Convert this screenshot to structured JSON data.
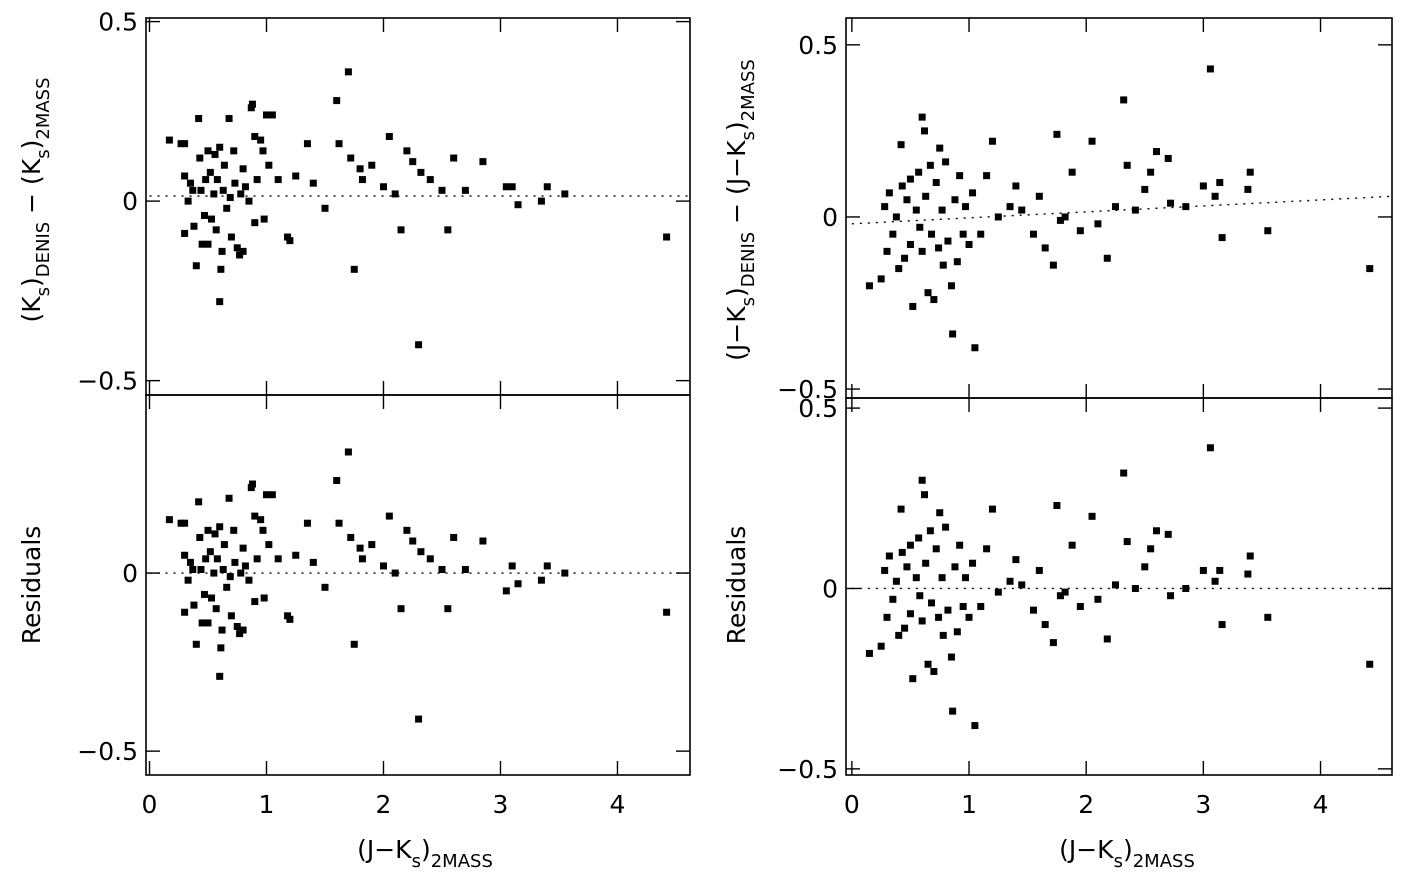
{
  "chart_data": [
    {
      "type": "scatter",
      "xlim": [
        -0.03,
        4.62
      ],
      "ylim": [
        -0.54,
        0.51
      ],
      "yticks": [
        {
          "value": -0.5,
          "label": "−0.5"
        },
        0,
        0.5
      ],
      "ylabel": [
        "(K",
        "s",
        ")",
        "DENIS",
        " − (K",
        "s",
        ")",
        "2MASS"
      ],
      "color": "#000000",
      "fit": {
        "x": [
          0,
          4.62
        ],
        "y": [
          0.014,
          0.014
        ]
      },
      "x": [
        0.17,
        0.27,
        0.3,
        0.3,
        0.3,
        0.33,
        0.35,
        0.37,
        0.38,
        0.4,
        0.42,
        0.43,
        0.44,
        0.45,
        0.47,
        0.48,
        0.5,
        0.5,
        0.52,
        0.53,
        0.55,
        0.56,
        0.57,
        0.58,
        0.6,
        0.6,
        0.61,
        0.62,
        0.63,
        0.64,
        0.66,
        0.68,
        0.69,
        0.7,
        0.72,
        0.73,
        0.75,
        0.77,
        0.78,
        0.8,
        0.8,
        0.82,
        0.85,
        0.87,
        0.88,
        0.9,
        0.9,
        0.92,
        0.95,
        0.97,
        0.98,
        1.0,
        1.02,
        1.05,
        1.1,
        1.18,
        1.2,
        1.25,
        1.35,
        1.4,
        1.5,
        1.6,
        1.62,
        1.7,
        1.72,
        1.75,
        1.8,
        1.82,
        1.9,
        2.0,
        2.05,
        2.1,
        2.15,
        2.2,
        2.25,
        2.3,
        2.32,
        2.4,
        2.5,
        2.55,
        2.6,
        2.7,
        2.85,
        3.05,
        3.1,
        3.15,
        3.35,
        3.4,
        3.55,
        4.42
      ],
      "y": [
        0.17,
        0.16,
        0.16,
        0.07,
        -0.09,
        0.0,
        0.05,
        0.03,
        -0.07,
        -0.18,
        0.23,
        0.12,
        0.03,
        -0.12,
        -0.04,
        0.06,
        0.14,
        -0.12,
        0.08,
        -0.05,
        0.02,
        0.13,
        -0.08,
        0.06,
        0.15,
        -0.28,
        -0.19,
        -0.14,
        0.03,
        0.1,
        -0.02,
        0.23,
        0.01,
        -0.1,
        0.14,
        0.05,
        -0.13,
        -0.15,
        0.02,
        0.09,
        -0.14,
        0.04,
        0.0,
        0.26,
        0.27,
        0.18,
        -0.06,
        0.06,
        0.17,
        0.14,
        -0.05,
        0.24,
        0.1,
        0.24,
        0.06,
        -0.1,
        -0.11,
        0.07,
        0.16,
        0.05,
        -0.02,
        0.28,
        0.16,
        0.36,
        0.12,
        -0.19,
        0.09,
        0.06,
        0.1,
        0.04,
        0.18,
        0.02,
        -0.08,
        0.14,
        0.11,
        -0.4,
        0.08,
        0.06,
        0.03,
        -0.08,
        0.12,
        0.03,
        0.11,
        0.04,
        0.04,
        -0.01,
        0.0,
        0.04,
        0.02,
        -0.1
      ]
    },
    {
      "type": "scatter",
      "xlim": [
        -0.03,
        4.62
      ],
      "ylim": [
        -0.567,
        0.5
      ],
      "xticks": [
        0,
        1,
        2,
        3,
        4
      ],
      "yticks": [
        {
          "value": -0.5,
          "label": "−0.5"
        },
        0
      ],
      "ylabel": [
        "Residuals"
      ],
      "xlabel": [
        "(J−K",
        "s",
        ")",
        "2MASS"
      ],
      "color": "#000000",
      "fit": {
        "x": [
          0,
          4.62
        ],
        "y": [
          0,
          0
        ]
      },
      "x": [
        0.17,
        0.27,
        0.3,
        0.3,
        0.3,
        0.33,
        0.35,
        0.37,
        0.38,
        0.4,
        0.42,
        0.43,
        0.44,
        0.45,
        0.47,
        0.48,
        0.5,
        0.5,
        0.52,
        0.53,
        0.55,
        0.56,
        0.57,
        0.58,
        0.6,
        0.6,
        0.61,
        0.62,
        0.63,
        0.64,
        0.66,
        0.68,
        0.69,
        0.7,
        0.72,
        0.73,
        0.75,
        0.77,
        0.78,
        0.8,
        0.8,
        0.82,
        0.85,
        0.87,
        0.88,
        0.9,
        0.9,
        0.92,
        0.95,
        0.97,
        0.98,
        1.0,
        1.02,
        1.05,
        1.1,
        1.18,
        1.2,
        1.25,
        1.35,
        1.4,
        1.5,
        1.6,
        1.62,
        1.7,
        1.72,
        1.75,
        1.8,
        1.82,
        1.9,
        2.0,
        2.05,
        2.1,
        2.15,
        2.2,
        2.25,
        2.3,
        2.32,
        2.4,
        2.5,
        2.55,
        2.6,
        2.7,
        2.85,
        3.05,
        3.1,
        3.15,
        3.35,
        3.4,
        3.55,
        4.42
      ],
      "y": [
        0.15,
        0.14,
        0.14,
        0.05,
        -0.11,
        -0.02,
        0.03,
        0.01,
        -0.09,
        -0.2,
        0.2,
        0.1,
        0.01,
        -0.14,
        -0.06,
        0.04,
        0.12,
        -0.14,
        0.06,
        -0.07,
        0.0,
        0.11,
        -0.1,
        0.04,
        0.13,
        -0.29,
        -0.21,
        -0.16,
        0.01,
        0.08,
        -0.04,
        0.21,
        -0.01,
        -0.12,
        0.12,
        0.03,
        -0.15,
        -0.17,
        0.0,
        0.07,
        -0.16,
        0.02,
        -0.02,
        0.24,
        0.25,
        0.16,
        -0.08,
        0.04,
        0.15,
        0.12,
        -0.07,
        0.22,
        0.08,
        0.22,
        0.04,
        -0.12,
        -0.13,
        0.05,
        0.14,
        0.03,
        -0.04,
        0.26,
        0.14,
        0.34,
        0.1,
        -0.2,
        0.07,
        0.04,
        0.08,
        0.02,
        0.16,
        0.0,
        -0.1,
        0.12,
        0.09,
        -0.41,
        0.06,
        0.04,
        0.01,
        -0.1,
        0.1,
        0.01,
        0.09,
        -0.05,
        0.02,
        -0.03,
        -0.02,
        0.02,
        0.0,
        -0.11
      ]
    },
    {
      "type": "scatter",
      "xlim": [
        -0.05,
        4.61
      ],
      "ylim": [
        -0.526,
        0.578
      ],
      "yticks": [
        {
          "value": -0.5,
          "label": "−0.5"
        },
        0,
        0.5
      ],
      "ylabel": [
        "(J−K",
        "s",
        ")",
        "DENIS",
        " − (J−K",
        "s",
        ")",
        "2MASS"
      ],
      "color": "#000000",
      "fit": {
        "x": [
          0,
          4.61
        ],
        "y": [
          -0.02,
          0.06
        ]
      },
      "x": [
        0.15,
        0.25,
        0.28,
        0.3,
        0.32,
        0.35,
        0.38,
        0.4,
        0.42,
        0.43,
        0.45,
        0.47,
        0.5,
        0.5,
        0.52,
        0.55,
        0.57,
        0.58,
        0.6,
        0.6,
        0.62,
        0.63,
        0.65,
        0.67,
        0.68,
        0.7,
        0.72,
        0.74,
        0.75,
        0.77,
        0.78,
        0.8,
        0.82,
        0.85,
        0.86,
        0.88,
        0.9,
        0.92,
        0.95,
        0.97,
        1.0,
        1.03,
        1.05,
        1.1,
        1.15,
        1.2,
        1.25,
        1.35,
        1.4,
        1.45,
        1.55,
        1.6,
        1.65,
        1.72,
        1.75,
        1.78,
        1.82,
        1.88,
        1.95,
        2.05,
        2.1,
        2.18,
        2.25,
        2.32,
        2.35,
        2.42,
        2.5,
        2.55,
        2.6,
        2.7,
        2.72,
        2.85,
        3.0,
        3.06,
        3.1,
        3.14,
        3.16,
        3.38,
        3.4,
        3.55,
        4.42
      ],
      "y": [
        -0.2,
        -0.18,
        0.03,
        -0.1,
        0.07,
        -0.05,
        0.0,
        -0.15,
        0.21,
        0.09,
        -0.12,
        0.05,
        -0.08,
        0.11,
        -0.26,
        0.02,
        0.13,
        -0.03,
        0.29,
        -0.1,
        0.25,
        0.06,
        -0.22,
        0.15,
        -0.05,
        -0.24,
        0.1,
        -0.09,
        0.2,
        0.02,
        -0.14,
        0.16,
        -0.07,
        -0.2,
        -0.34,
        0.05,
        -0.13,
        0.12,
        -0.05,
        0.03,
        -0.08,
        0.07,
        -0.38,
        -0.05,
        0.12,
        0.22,
        0.0,
        0.03,
        0.09,
        0.02,
        -0.05,
        0.06,
        -0.09,
        -0.14,
        0.24,
        -0.01,
        0.0,
        0.13,
        -0.04,
        0.22,
        -0.02,
        -0.12,
        0.03,
        0.34,
        0.15,
        0.02,
        0.08,
        0.13,
        0.19,
        0.17,
        0.04,
        0.03,
        0.09,
        0.43,
        0.06,
        0.1,
        -0.06,
        0.08,
        0.13,
        -0.04,
        -0.15
      ]
    },
    {
      "type": "scatter",
      "xlim": [
        -0.05,
        4.61
      ],
      "ylim": [
        -0.517,
        0.528
      ],
      "xticks": [
        0,
        1,
        2,
        3,
        4
      ],
      "yticks": [
        {
          "value": -0.5,
          "label": "−0.5"
        },
        0,
        0.5
      ],
      "ylabel": [
        "Residuals"
      ],
      "xlabel": [
        "(J−K",
        "s",
        ")",
        "2MASS"
      ],
      "color": "#000000",
      "fit": {
        "x": [
          0,
          4.61
        ],
        "y": [
          0,
          0
        ]
      },
      "x": [
        0.15,
        0.25,
        0.28,
        0.3,
        0.32,
        0.35,
        0.38,
        0.4,
        0.42,
        0.43,
        0.45,
        0.47,
        0.5,
        0.5,
        0.52,
        0.55,
        0.57,
        0.58,
        0.6,
        0.6,
        0.62,
        0.63,
        0.65,
        0.67,
        0.68,
        0.7,
        0.72,
        0.74,
        0.75,
        0.77,
        0.78,
        0.8,
        0.82,
        0.85,
        0.86,
        0.88,
        0.9,
        0.92,
        0.95,
        0.97,
        1.0,
        1.03,
        1.05,
        1.1,
        1.15,
        1.2,
        1.25,
        1.35,
        1.4,
        1.45,
        1.55,
        1.6,
        1.65,
        1.72,
        1.75,
        1.78,
        1.82,
        1.88,
        1.95,
        2.05,
        2.1,
        2.18,
        2.25,
        2.32,
        2.35,
        2.42,
        2.5,
        2.55,
        2.6,
        2.7,
        2.72,
        2.85,
        3.0,
        3.06,
        3.1,
        3.14,
        3.16,
        3.38,
        3.4,
        3.55,
        4.42
      ],
      "y": [
        -0.18,
        -0.16,
        0.05,
        -0.08,
        0.09,
        -0.03,
        0.02,
        -0.13,
        0.22,
        0.1,
        -0.11,
        0.06,
        -0.07,
        0.12,
        -0.25,
        0.03,
        0.14,
        -0.02,
        0.3,
        -0.09,
        0.26,
        0.07,
        -0.21,
        0.16,
        -0.04,
        -0.23,
        0.11,
        -0.08,
        0.21,
        0.03,
        -0.13,
        0.17,
        -0.06,
        -0.19,
        -0.34,
        0.06,
        -0.12,
        0.12,
        -0.05,
        0.03,
        -0.08,
        0.07,
        -0.38,
        -0.05,
        0.11,
        0.22,
        -0.01,
        0.02,
        0.08,
        0.01,
        -0.06,
        0.05,
        -0.1,
        -0.15,
        0.23,
        -0.02,
        -0.01,
        0.12,
        -0.05,
        0.2,
        -0.03,
        -0.14,
        0.01,
        0.32,
        0.13,
        0.0,
        0.06,
        0.11,
        0.16,
        0.15,
        -0.02,
        0.0,
        0.05,
        0.39,
        0.02,
        0.05,
        -0.1,
        0.04,
        0.09,
        -0.08,
        -0.21
      ]
    }
  ]
}
